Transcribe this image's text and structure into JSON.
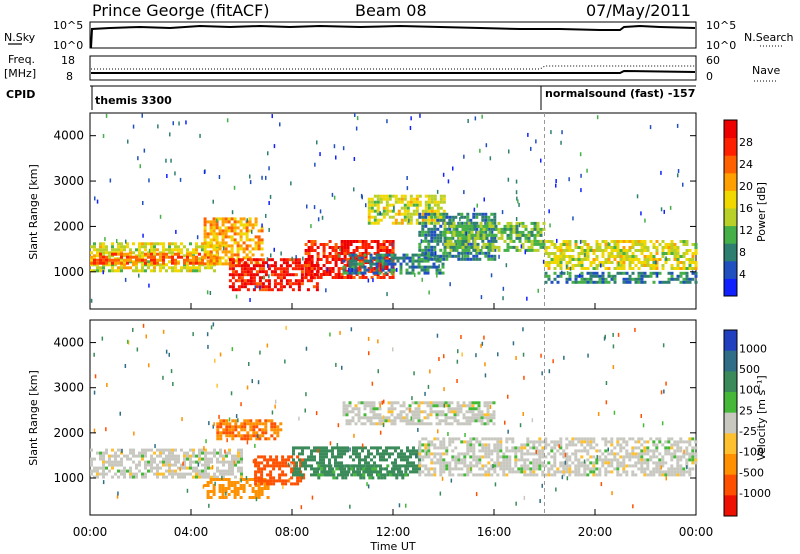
{
  "header": {
    "station": "Prince George (fitACF)",
    "beam": "Beam 08",
    "date": "07/May/2011"
  },
  "top_panels": {
    "nsky_label": "N.Sky",
    "nsky_ticks": [
      "10^5",
      "10^0"
    ],
    "nsearch_label": "N.Search",
    "nsearch_ticks": [
      "10^5",
      "10^0"
    ],
    "freq_label": "Freq.",
    "freq_unit": "[MHz]",
    "freq_ticks": [
      "18",
      "8"
    ],
    "nave_label": "Nave",
    "nave_ticks": [
      "60",
      "0"
    ],
    "cpid_label": "CPID",
    "cpid_segments": [
      {
        "label": "themis 3300",
        "start_hour": 0
      },
      {
        "label": "normalsound (fast) -157",
        "start_hour": 18
      }
    ]
  },
  "axes": {
    "xlabel": "Time UT",
    "xticks": [
      "00:00",
      "04:00",
      "08:00",
      "12:00",
      "16:00",
      "20:00",
      "00:00"
    ],
    "ylabel": "Slant Range [km]",
    "yticks": [
      "1000",
      "2000",
      "3000",
      "4000"
    ]
  },
  "colorbars": {
    "power": {
      "label": "Power [dB]",
      "ticks": [
        "4",
        "8",
        "12",
        "16",
        "20",
        "24",
        "28"
      ],
      "colors": [
        "#1020ff",
        "#2050c0",
        "#2f7f70",
        "#45b048",
        "#b8d028",
        "#f0d800",
        "#ffa000",
        "#ff6000",
        "#ff2000",
        "#ee0000"
      ]
    },
    "velocity": {
      "label": "Velocity [m s⁻¹]",
      "ticks": [
        "1000",
        "500",
        "100",
        "25",
        "-25",
        "-100",
        "-500",
        "-1000"
      ],
      "colors": [
        "#2040c0",
        "#2f6e86",
        "#3a8a5a",
        "#45b838",
        "#c8c8c0",
        "#ffc030",
        "#ff9000",
        "#ff5000",
        "#ee1000"
      ]
    }
  },
  "chart_data": [
    {
      "type": "heatmap",
      "name": "Power",
      "x_range_hours": [
        0,
        24
      ],
      "y_range_km": [
        180,
        4500
      ],
      "units": "dB",
      "bands": [
        {
          "t0": 0,
          "t1": 5,
          "r0": 1050,
          "r1": 1650,
          "value": 16
        },
        {
          "t0": 0,
          "t1": 5,
          "r0": 1180,
          "r1": 1420,
          "value": 24
        },
        {
          "t0": 4.5,
          "t1": 6.8,
          "r0": 1200,
          "r1": 2200,
          "value": 20
        },
        {
          "t0": 5.5,
          "t1": 9,
          "r0": 600,
          "r1": 1300,
          "value": 28
        },
        {
          "t0": 8.5,
          "t1": 12,
          "r0": 900,
          "r1": 1700,
          "value": 28
        },
        {
          "t0": 10,
          "t1": 14,
          "r0": 1000,
          "r1": 1400,
          "value": 8
        },
        {
          "t0": 11,
          "t1": 14,
          "r0": 2100,
          "r1": 2700,
          "value": 16
        },
        {
          "t0": 13,
          "t1": 16,
          "r0": 1300,
          "r1": 2300,
          "value": 8
        },
        {
          "t0": 14,
          "t1": 18,
          "r0": 1500,
          "r1": 2100,
          "value": 12
        },
        {
          "t0": 18,
          "t1": 24,
          "r0": 1100,
          "r1": 1700,
          "value": 16
        },
        {
          "t0": 18,
          "t1": 24,
          "r0": 800,
          "r1": 1000,
          "value": 8
        }
      ]
    },
    {
      "type": "heatmap",
      "name": "Velocity",
      "x_range_hours": [
        0,
        24
      ],
      "y_range_km": [
        180,
        4500
      ],
      "units": "m s-1",
      "bands": [
        {
          "t0": 0,
          "t1": 6,
          "r0": 1050,
          "r1": 1650,
          "value": 0
        },
        {
          "t0": 5,
          "t1": 7.5,
          "r0": 1900,
          "r1": 2300,
          "value": -300
        },
        {
          "t0": 4.5,
          "t1": 7,
          "r0": 600,
          "r1": 1000,
          "value": -100
        },
        {
          "t0": 6.5,
          "t1": 8.5,
          "r0": 900,
          "r1": 1500,
          "value": -600
        },
        {
          "t0": 8,
          "t1": 13,
          "r0": 1100,
          "r1": 1700,
          "value": 200
        },
        {
          "t0": 9,
          "t1": 12.5,
          "r0": 1000,
          "r1": 1300,
          "value": 80
        },
        {
          "t0": 10,
          "t1": 16,
          "r0": 2200,
          "r1": 2700,
          "value": 0
        },
        {
          "t0": 13,
          "t1": 24,
          "r0": 1100,
          "r1": 1900,
          "value": 0
        }
      ]
    }
  ]
}
